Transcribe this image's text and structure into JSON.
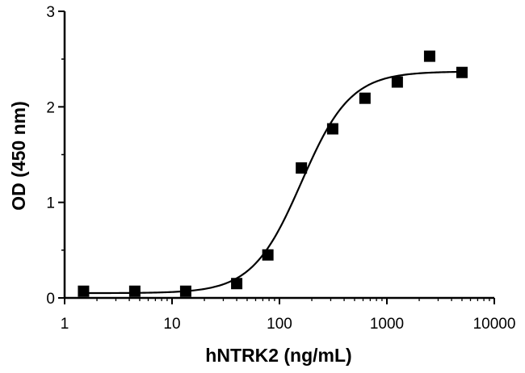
{
  "chart_data": {
    "type": "scatter",
    "xlabel": "hNTRK2 (ng/mL)",
    "ylabel": "OD (450 nm)",
    "x_scale": "log",
    "xlim": [
      1,
      10000
    ],
    "ylim": [
      0,
      3
    ],
    "x_ticks": [
      1,
      10,
      100,
      1000,
      10000
    ],
    "x_tick_labels": [
      "1",
      "10",
      "100",
      "1000",
      "10000"
    ],
    "y_ticks": [
      0,
      1,
      2,
      3
    ],
    "y_tick_labels": [
      "0",
      "1",
      "2",
      "3"
    ],
    "grid": false,
    "legend": "none",
    "marker": "square",
    "color": "#000000",
    "series": [
      {
        "x": [
          1.5,
          4.5,
          13.4,
          40,
          78,
          160,
          313,
          625,
          1250,
          2500,
          5000
        ],
        "y": [
          0.07,
          0.07,
          0.07,
          0.15,
          0.45,
          1.36,
          1.77,
          2.09,
          2.26,
          2.53,
          2.36
        ]
      }
    ],
    "fit_curve": {
      "model": "four-parameter logistic",
      "bottom": 0.05,
      "top": 2.37,
      "ec50": 160,
      "hill": 1.9
    }
  }
}
